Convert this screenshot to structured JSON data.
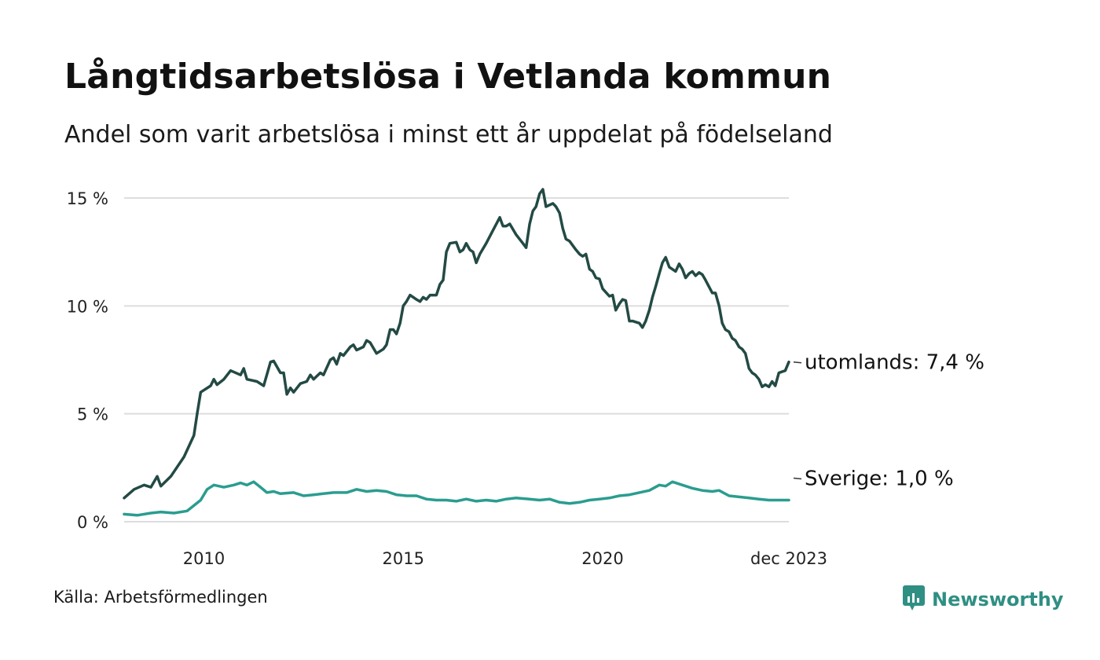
{
  "header": {
    "title": "Långtidsarbetslösa i Vetlanda kommun",
    "subtitle": "Andel som varit arbetslösa i minst ett år uppdelat på födelseland"
  },
  "footer": {
    "source": "Källa: Arbetsförmedlingen",
    "brand": "Newsworthy"
  },
  "colors": {
    "utomlands": "#234a44",
    "sverige": "#2a9d8f",
    "grid": "#dddddd",
    "brand": "#2f8f83"
  },
  "chart_data": {
    "type": "line",
    "title": "Långtidsarbetslösa i Vetlanda kommun",
    "xlabel": "",
    "ylabel": "",
    "x_range": [
      2008.0,
      2023.917
    ],
    "ylim": [
      0,
      15
    ],
    "y_ticks": [
      {
        "value": 0,
        "label": "0 %"
      },
      {
        "value": 5,
        "label": "5 %"
      },
      {
        "value": 10,
        "label": "10 %"
      },
      {
        "value": 15,
        "label": "15 %"
      }
    ],
    "x_ticks": [
      {
        "value": 2010.0,
        "label": "2010"
      },
      {
        "value": 2015.0,
        "label": "2015"
      },
      {
        "value": 2020.0,
        "label": "2020"
      },
      {
        "value": 2023.917,
        "label": "dec 2023"
      }
    ],
    "series": [
      {
        "name": "utomlands",
        "end_label": "utomlands: 7,4 %",
        "color": "#234a44",
        "points": [
          [
            2008.0,
            1.1
          ],
          [
            2008.25,
            1.5
          ],
          [
            2008.5,
            1.7
          ],
          [
            2008.67,
            1.6
          ],
          [
            2008.83,
            2.1
          ],
          [
            2008.92,
            1.65
          ],
          [
            2009.17,
            2.1
          ],
          [
            2009.5,
            3.0
          ],
          [
            2009.75,
            4.0
          ],
          [
            2009.83,
            5.0
          ],
          [
            2009.92,
            6.0
          ],
          [
            2010.17,
            6.3
          ],
          [
            2010.25,
            6.6
          ],
          [
            2010.33,
            6.35
          ],
          [
            2010.5,
            6.6
          ],
          [
            2010.67,
            7.0
          ],
          [
            2010.92,
            6.8
          ],
          [
            2011.0,
            7.1
          ],
          [
            2011.08,
            6.6
          ],
          [
            2011.33,
            6.5
          ],
          [
            2011.5,
            6.3
          ],
          [
            2011.67,
            7.4
          ],
          [
            2011.75,
            7.45
          ],
          [
            2011.92,
            6.9
          ],
          [
            2012.0,
            6.9
          ],
          [
            2012.08,
            5.9
          ],
          [
            2012.17,
            6.2
          ],
          [
            2012.25,
            6.0
          ],
          [
            2012.42,
            6.4
          ],
          [
            2012.58,
            6.5
          ],
          [
            2012.67,
            6.8
          ],
          [
            2012.75,
            6.6
          ],
          [
            2012.92,
            6.9
          ],
          [
            2013.0,
            6.8
          ],
          [
            2013.17,
            7.5
          ],
          [
            2013.25,
            7.6
          ],
          [
            2013.33,
            7.3
          ],
          [
            2013.42,
            7.8
          ],
          [
            2013.5,
            7.7
          ],
          [
            2013.67,
            8.1
          ],
          [
            2013.75,
            8.2
          ],
          [
            2013.83,
            7.95
          ],
          [
            2014.0,
            8.1
          ],
          [
            2014.08,
            8.4
          ],
          [
            2014.17,
            8.3
          ],
          [
            2014.33,
            7.8
          ],
          [
            2014.5,
            8.0
          ],
          [
            2014.58,
            8.2
          ],
          [
            2014.67,
            8.9
          ],
          [
            2014.75,
            8.9
          ],
          [
            2014.83,
            8.7
          ],
          [
            2014.92,
            9.2
          ],
          [
            2015.0,
            10.0
          ],
          [
            2015.08,
            10.2
          ],
          [
            2015.17,
            10.5
          ],
          [
            2015.33,
            10.3
          ],
          [
            2015.42,
            10.2
          ],
          [
            2015.5,
            10.4
          ],
          [
            2015.58,
            10.3
          ],
          [
            2015.67,
            10.5
          ],
          [
            2015.83,
            10.5
          ],
          [
            2015.92,
            11.0
          ],
          [
            2016.0,
            11.2
          ],
          [
            2016.08,
            12.5
          ],
          [
            2016.17,
            12.9
          ],
          [
            2016.33,
            12.95
          ],
          [
            2016.42,
            12.5
          ],
          [
            2016.5,
            12.6
          ],
          [
            2016.58,
            12.9
          ],
          [
            2016.67,
            12.6
          ],
          [
            2016.75,
            12.5
          ],
          [
            2016.83,
            12.0
          ],
          [
            2016.92,
            12.4
          ],
          [
            2017.08,
            12.9
          ],
          [
            2017.25,
            13.5
          ],
          [
            2017.42,
            14.1
          ],
          [
            2017.5,
            13.7
          ],
          [
            2017.58,
            13.7
          ],
          [
            2017.67,
            13.8
          ],
          [
            2017.83,
            13.3
          ],
          [
            2018.0,
            12.9
          ],
          [
            2018.08,
            12.7
          ],
          [
            2018.17,
            13.8
          ],
          [
            2018.25,
            14.4
          ],
          [
            2018.33,
            14.6
          ],
          [
            2018.42,
            15.2
          ],
          [
            2018.5,
            15.4
          ],
          [
            2018.58,
            14.6
          ],
          [
            2018.75,
            14.75
          ],
          [
            2018.83,
            14.6
          ],
          [
            2018.92,
            14.3
          ],
          [
            2019.0,
            13.6
          ],
          [
            2019.08,
            13.1
          ],
          [
            2019.17,
            13.0
          ],
          [
            2019.33,
            12.6
          ],
          [
            2019.42,
            12.4
          ],
          [
            2019.5,
            12.3
          ],
          [
            2019.58,
            12.4
          ],
          [
            2019.67,
            11.7
          ],
          [
            2019.75,
            11.6
          ],
          [
            2019.83,
            11.3
          ],
          [
            2019.92,
            11.25
          ],
          [
            2020.0,
            10.8
          ],
          [
            2020.17,
            10.45
          ],
          [
            2020.25,
            10.5
          ],
          [
            2020.33,
            9.8
          ],
          [
            2020.42,
            10.1
          ],
          [
            2020.5,
            10.3
          ],
          [
            2020.58,
            10.25
          ],
          [
            2020.67,
            9.3
          ],
          [
            2020.75,
            9.3
          ],
          [
            2020.92,
            9.2
          ],
          [
            2021.0,
            9.0
          ],
          [
            2021.08,
            9.3
          ],
          [
            2021.17,
            9.8
          ],
          [
            2021.25,
            10.4
          ],
          [
            2021.33,
            10.9
          ],
          [
            2021.42,
            11.5
          ],
          [
            2021.5,
            12.0
          ],
          [
            2021.58,
            12.25
          ],
          [
            2021.67,
            11.8
          ],
          [
            2021.83,
            11.6
          ],
          [
            2021.92,
            11.95
          ],
          [
            2022.0,
            11.7
          ],
          [
            2022.08,
            11.3
          ],
          [
            2022.17,
            11.5
          ],
          [
            2022.25,
            11.6
          ],
          [
            2022.33,
            11.4
          ],
          [
            2022.42,
            11.55
          ],
          [
            2022.5,
            11.45
          ],
          [
            2022.58,
            11.2
          ],
          [
            2022.75,
            10.6
          ],
          [
            2022.83,
            10.6
          ],
          [
            2022.92,
            10.0
          ],
          [
            2023.0,
            9.2
          ],
          [
            2023.08,
            8.9
          ],
          [
            2023.17,
            8.8
          ],
          [
            2023.25,
            8.5
          ],
          [
            2023.33,
            8.4
          ],
          [
            2023.42,
            8.1
          ],
          [
            2023.5,
            8.0
          ],
          [
            2023.58,
            7.8
          ],
          [
            2023.67,
            7.1
          ],
          [
            2023.75,
            6.9
          ],
          [
            2023.83,
            6.8
          ],
          [
            2023.92,
            6.6
          ],
          [
            2024.0,
            6.25
          ],
          [
            2024.08,
            6.35
          ],
          [
            2024.17,
            6.25
          ],
          [
            2024.25,
            6.5
          ],
          [
            2024.33,
            6.3
          ],
          [
            2024.42,
            6.9
          ],
          [
            2024.58,
            7.0
          ],
          [
            2024.67,
            7.4
          ]
        ]
      },
      {
        "name": "Sverige",
        "end_label": "Sverige: 1,0 %",
        "color": "#2a9d8f",
        "points": [
          [
            2008.0,
            0.35
          ],
          [
            2008.33,
            0.3
          ],
          [
            2008.67,
            0.4
          ],
          [
            2008.92,
            0.45
          ],
          [
            2009.25,
            0.4
          ],
          [
            2009.58,
            0.5
          ],
          [
            2009.92,
            1.0
          ],
          [
            2010.08,
            1.5
          ],
          [
            2010.25,
            1.7
          ],
          [
            2010.5,
            1.6
          ],
          [
            2010.75,
            1.7
          ],
          [
            2010.92,
            1.8
          ],
          [
            2011.08,
            1.7
          ],
          [
            2011.25,
            1.85
          ],
          [
            2011.42,
            1.6
          ],
          [
            2011.58,
            1.35
          ],
          [
            2011.75,
            1.4
          ],
          [
            2011.92,
            1.3
          ],
          [
            2012.25,
            1.35
          ],
          [
            2012.5,
            1.2
          ],
          [
            2012.75,
            1.25
          ],
          [
            2013.0,
            1.3
          ],
          [
            2013.25,
            1.35
          ],
          [
            2013.58,
            1.35
          ],
          [
            2013.83,
            1.5
          ],
          [
            2014.08,
            1.4
          ],
          [
            2014.33,
            1.45
          ],
          [
            2014.58,
            1.4
          ],
          [
            2014.83,
            1.25
          ],
          [
            2015.08,
            1.2
          ],
          [
            2015.33,
            1.2
          ],
          [
            2015.58,
            1.05
          ],
          [
            2015.83,
            1.0
          ],
          [
            2016.08,
            1.0
          ],
          [
            2016.33,
            0.95
          ],
          [
            2016.58,
            1.05
          ],
          [
            2016.83,
            0.95
          ],
          [
            2017.08,
            1.0
          ],
          [
            2017.33,
            0.95
          ],
          [
            2017.58,
            1.05
          ],
          [
            2017.83,
            1.1
          ],
          [
            2018.17,
            1.05
          ],
          [
            2018.42,
            1.0
          ],
          [
            2018.67,
            1.05
          ],
          [
            2018.92,
            0.9
          ],
          [
            2019.17,
            0.85
          ],
          [
            2019.42,
            0.9
          ],
          [
            2019.67,
            1.0
          ],
          [
            2019.92,
            1.05
          ],
          [
            2020.17,
            1.1
          ],
          [
            2020.42,
            1.2
          ],
          [
            2020.67,
            1.25
          ],
          [
            2020.92,
            1.35
          ],
          [
            2021.17,
            1.45
          ],
          [
            2021.42,
            1.7
          ],
          [
            2021.58,
            1.65
          ],
          [
            2021.75,
            1.85
          ],
          [
            2022.0,
            1.7
          ],
          [
            2022.25,
            1.55
          ],
          [
            2022.5,
            1.45
          ],
          [
            2022.75,
            1.4
          ],
          [
            2022.92,
            1.45
          ],
          [
            2023.17,
            1.2
          ],
          [
            2023.42,
            1.15
          ],
          [
            2023.67,
            1.1
          ],
          [
            2023.92,
            1.05
          ],
          [
            2024.17,
            1.0
          ],
          [
            2024.42,
            1.0
          ],
          [
            2024.67,
            1.0
          ]
        ]
      }
    ]
  }
}
